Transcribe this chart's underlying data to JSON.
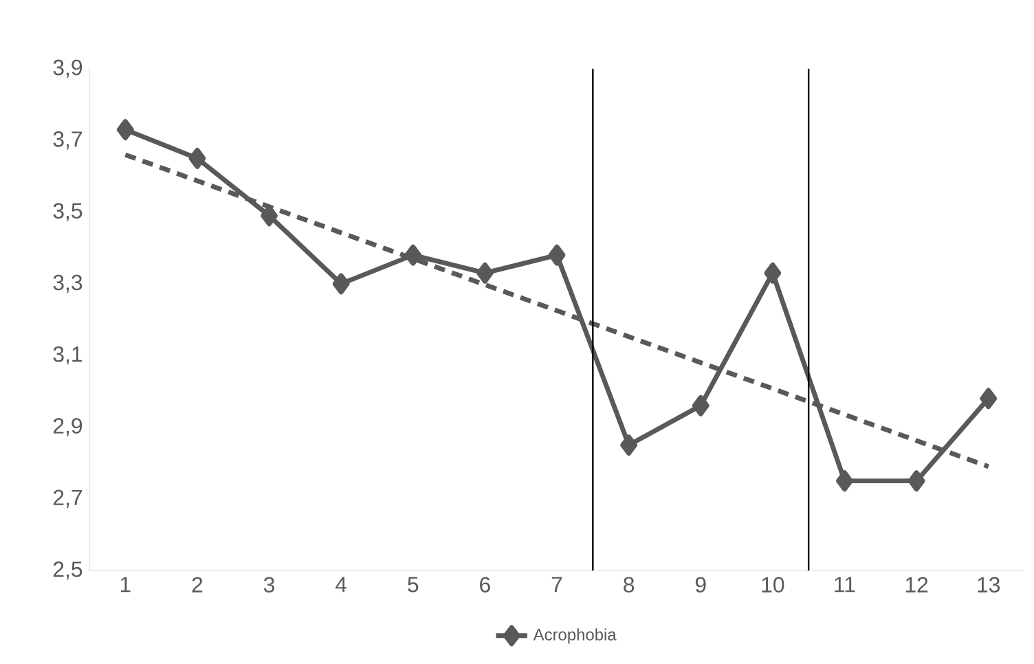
{
  "chart_data": {
    "type": "line",
    "x": [
      1,
      2,
      3,
      4,
      5,
      6,
      7,
      8,
      9,
      10,
      11,
      12,
      13
    ],
    "series": [
      {
        "name": "Acrophobia",
        "color": "#595959",
        "values": [
          3.73,
          3.65,
          3.49,
          3.3,
          3.38,
          3.33,
          3.38,
          2.85,
          2.96,
          3.33,
          2.75,
          2.75,
          2.98
        ],
        "marker": "diamond",
        "line_style": "solid"
      },
      {
        "type": "line",
        "color": "#595959",
        "x": [
          1,
          13
        ],
        "values": [
          3.66,
          2.79
        ],
        "marker": "none",
        "line_style": "dashed"
      }
    ],
    "xlim": [
      0.5,
      13.5
    ],
    "xticks": [
      1,
      2,
      3,
      4,
      5,
      6,
      7,
      8,
      9,
      10,
      11,
      12,
      13
    ],
    "ylim": [
      2.5,
      3.9
    ],
    "yticks": [
      {
        "value": 2.5,
        "label": "2,5"
      },
      {
        "value": 2.7,
        "label": "2,7"
      },
      {
        "value": 2.9,
        "label": "2,9"
      },
      {
        "value": 3.1,
        "label": "3,1"
      },
      {
        "value": 3.3,
        "label": "3,3"
      },
      {
        "value": 3.5,
        "label": "3,5"
      },
      {
        "value": 3.7,
        "label": "3,7"
      },
      {
        "value": 3.9,
        "label": "3,9"
      }
    ],
    "ref_lines": [
      {
        "axis": "x",
        "value": 7.5,
        "color": "#000000"
      },
      {
        "axis": "x",
        "value": 10.5,
        "color": "#000000"
      }
    ],
    "grid": false,
    "legend": "bottom"
  }
}
